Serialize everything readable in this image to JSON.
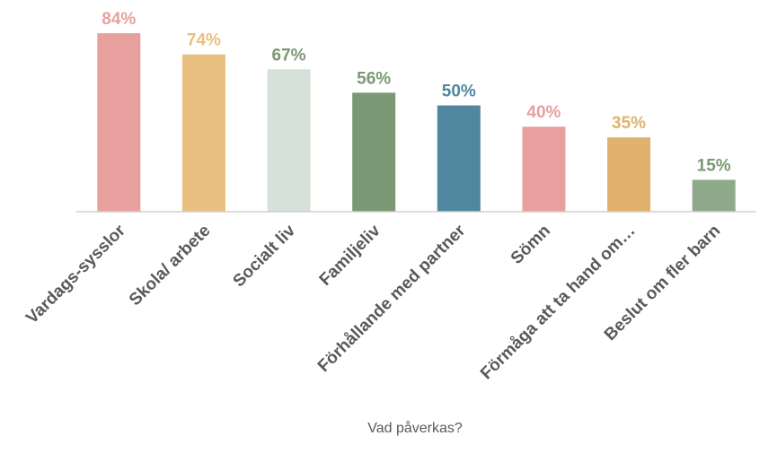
{
  "chart_data": {
    "type": "bar",
    "categories": [
      "Vardags-sysslor",
      "Skola/ arbete",
      "Socialt liv",
      "Familjeliv",
      "Förhållande med partner",
      "Sömn",
      "Förmåga att ta hand om…",
      "Beslut om fler barn"
    ],
    "values": [
      84,
      74,
      67,
      56,
      50,
      40,
      35,
      15
    ],
    "value_labels": [
      "84%",
      "74%",
      "67%",
      "56%",
      "50%",
      "40%",
      "35%",
      "15%"
    ],
    "colors": [
      "#e8a09f",
      "#e9c07f",
      "#d6e1d9",
      "#7a9873",
      "#51879e",
      "#e8a09f",
      "#e0b26e",
      "#8fa98b"
    ],
    "label_colors": [
      "#e8a09f",
      "#e9c07f",
      "#7a9873",
      "#7a9873",
      "#51879e",
      "#e8a09f",
      "#e0b26e",
      "#7a9873"
    ],
    "ylim": [
      0,
      84
    ],
    "x_label": "Vad påverkas?"
  }
}
